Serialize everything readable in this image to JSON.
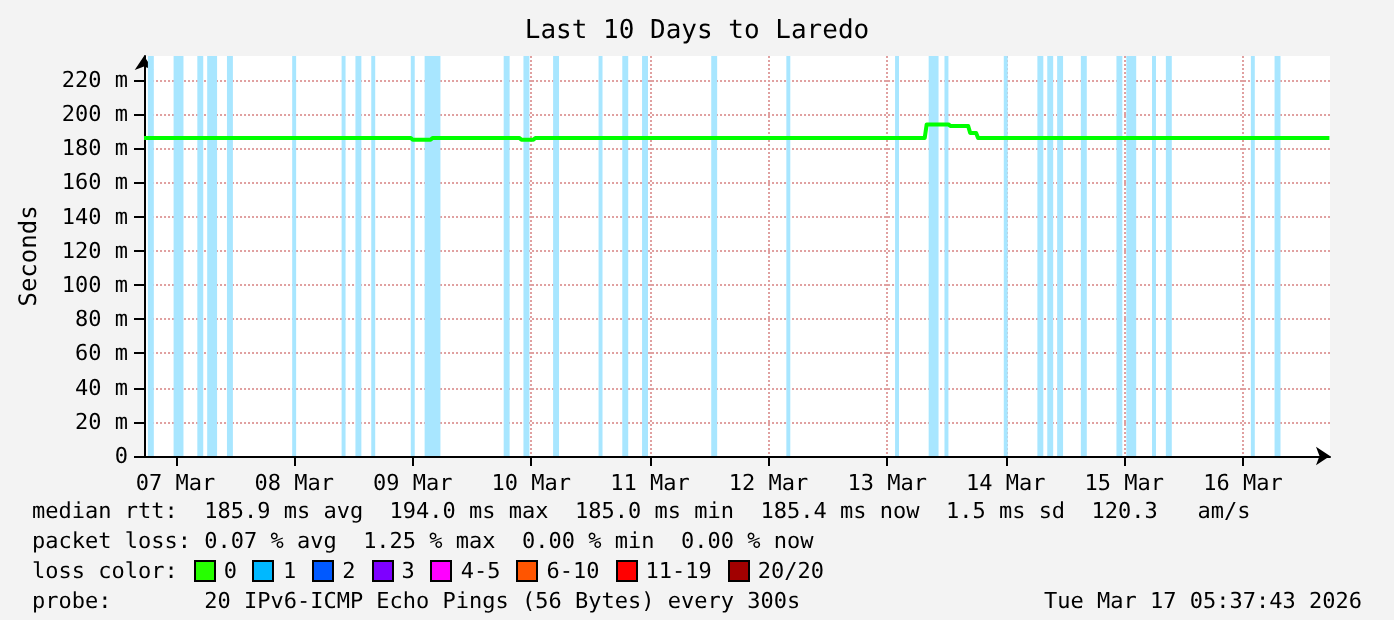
{
  "chart_data": {
    "type": "line",
    "title": "Last 10 Days to Laredo",
    "ylabel": "Seconds",
    "x": [
      "2026-03-07T05:37",
      "2026-03-09T11:36",
      "2026-03-09T12:00",
      "2026-03-09T15:36",
      "2026-03-09T16:00",
      "2026-03-10T09:36",
      "2026-03-10T10:00",
      "2026-03-10T12:24",
      "2026-03-10T12:48",
      "2026-03-13T19:36",
      "2026-03-13T20:00",
      "2026-03-14T00:24",
      "2026-03-14T00:48",
      "2026-03-14T04:24",
      "2026-03-14T04:48",
      "2026-03-14T06:00",
      "2026-03-14T06:24",
      "2026-03-17T05:30"
    ],
    "series": [
      {
        "color": "#00ff00",
        "values": [
          186,
          186,
          185,
          185,
          186,
          186,
          185,
          185,
          186,
          186,
          194,
          194,
          193,
          193,
          189,
          189,
          186,
          186
        ]
      }
    ],
    "xlim": [
      "2026-03-07T05:37",
      "2026-03-17T05:37"
    ],
    "xticks": [
      {
        "value": "2026-03-07T12:00",
        "label": "07 Mar"
      },
      {
        "value": "2026-03-08T12:00",
        "label": "08 Mar"
      },
      {
        "value": "2026-03-09T12:00",
        "label": "09 Mar"
      },
      {
        "value": "2026-03-10T12:00",
        "label": "10 Mar"
      },
      {
        "value": "2026-03-11T12:00",
        "label": "11 Mar"
      },
      {
        "value": "2026-03-12T12:00",
        "label": "12 Mar"
      },
      {
        "value": "2026-03-13T12:00",
        "label": "13 Mar"
      },
      {
        "value": "2026-03-14T12:00",
        "label": "14 Mar"
      },
      {
        "value": "2026-03-15T12:00",
        "label": "15 Mar"
      },
      {
        "value": "2026-03-16T12:00",
        "label": "16 Mar"
      }
    ],
    "ylim": [
      0,
      234
    ],
    "yticks": [
      {
        "value": 0,
        "label": "0"
      },
      {
        "value": 20,
        "label": "20 m"
      },
      {
        "value": 40,
        "label": "40 m"
      },
      {
        "value": 60,
        "label": "60 m"
      },
      {
        "value": 80,
        "label": "80 m"
      },
      {
        "value": 100,
        "label": "100 m"
      },
      {
        "value": 120,
        "label": "120 m"
      },
      {
        "value": 140,
        "label": "140 m"
      },
      {
        "value": 160,
        "label": "160 m"
      },
      {
        "value": 180,
        "label": "180 m"
      },
      {
        "value": 200,
        "label": "200 m"
      },
      {
        "value": 220,
        "label": "220 m"
      }
    ],
    "grid": true,
    "marker": "none",
    "bands": [
      {
        "axis": "x",
        "from": "2026-03-07T06:24",
        "to": "2026-03-07T07:36",
        "color": "#a8e6ff"
      },
      {
        "axis": "x",
        "from": "2026-03-07T11:36",
        "to": "2026-03-07T13:36",
        "color": "#a8e6ff"
      },
      {
        "axis": "x",
        "from": "2026-03-07T16:24",
        "to": "2026-03-07T17:36",
        "color": "#a8e6ff"
      },
      {
        "axis": "x",
        "from": "2026-03-07T18:24",
        "to": "2026-03-07T20:24",
        "color": "#a8e6ff"
      },
      {
        "axis": "x",
        "from": "2026-03-07T22:24",
        "to": "2026-03-07T23:36",
        "color": "#a8e6ff"
      },
      {
        "axis": "x",
        "from": "2026-03-08T11:36",
        "to": "2026-03-08T12:24",
        "color": "#a8e6ff"
      },
      {
        "axis": "x",
        "from": "2026-03-08T21:36",
        "to": "2026-03-08T22:24",
        "color": "#a8e6ff"
      },
      {
        "axis": "x",
        "from": "2026-03-09T00:24",
        "to": "2026-03-09T01:36",
        "color": "#a8e6ff"
      },
      {
        "axis": "x",
        "from": "2026-03-09T03:36",
        "to": "2026-03-09T04:24",
        "color": "#a8e6ff"
      },
      {
        "axis": "x",
        "from": "2026-03-09T11:36",
        "to": "2026-03-09T12:24",
        "color": "#a8e6ff"
      },
      {
        "axis": "x",
        "from": "2026-03-09T14:24",
        "to": "2026-03-09T17:36",
        "color": "#a8e6ff"
      },
      {
        "axis": "x",
        "from": "2026-03-10T06:24",
        "to": "2026-03-10T07:36",
        "color": "#a8e6ff"
      },
      {
        "axis": "x",
        "from": "2026-03-10T10:24",
        "to": "2026-03-10T11:36",
        "color": "#a8e6ff"
      },
      {
        "axis": "x",
        "from": "2026-03-10T16:24",
        "to": "2026-03-10T17:36",
        "color": "#a8e6ff"
      },
      {
        "axis": "x",
        "from": "2026-03-11T01:36",
        "to": "2026-03-11T02:24",
        "color": "#a8e6ff"
      },
      {
        "axis": "x",
        "from": "2026-03-11T06:24",
        "to": "2026-03-11T07:36",
        "color": "#a8e6ff"
      },
      {
        "axis": "x",
        "from": "2026-03-11T10:24",
        "to": "2026-03-11T11:36",
        "color": "#a8e6ff"
      },
      {
        "axis": "x",
        "from": "2026-03-12T00:24",
        "to": "2026-03-12T01:36",
        "color": "#a8e6ff"
      },
      {
        "axis": "x",
        "from": "2026-03-12T15:36",
        "to": "2026-03-12T16:24",
        "color": "#a8e6ff"
      },
      {
        "axis": "x",
        "from": "2026-03-13T13:36",
        "to": "2026-03-13T14:24",
        "color": "#a8e6ff"
      },
      {
        "axis": "x",
        "from": "2026-03-13T20:24",
        "to": "2026-03-13T22:24",
        "color": "#a8e6ff"
      },
      {
        "axis": "x",
        "from": "2026-03-13T23:36",
        "to": "2026-03-14T00:24",
        "color": "#a8e6ff"
      },
      {
        "axis": "x",
        "from": "2026-03-14T11:36",
        "to": "2026-03-14T12:24",
        "color": "#a8e6ff"
      },
      {
        "axis": "x",
        "from": "2026-03-14T18:24",
        "to": "2026-03-14T19:36",
        "color": "#a8e6ff"
      },
      {
        "axis": "x",
        "from": "2026-03-14T20:24",
        "to": "2026-03-14T21:36",
        "color": "#a8e6ff"
      },
      {
        "axis": "x",
        "from": "2026-03-14T22:24",
        "to": "2026-03-14T23:36",
        "color": "#a8e6ff"
      },
      {
        "axis": "x",
        "from": "2026-03-15T03:12",
        "to": "2026-03-15T04:24",
        "color": "#a8e6ff"
      },
      {
        "axis": "x",
        "from": "2026-03-15T10:24",
        "to": "2026-03-15T11:36",
        "color": "#a8e6ff"
      },
      {
        "axis": "x",
        "from": "2026-03-15T12:24",
        "to": "2026-03-15T14:24",
        "color": "#a8e6ff"
      },
      {
        "axis": "x",
        "from": "2026-03-15T17:36",
        "to": "2026-03-15T18:24",
        "color": "#a8e6ff"
      },
      {
        "axis": "x",
        "from": "2026-03-15T20:24",
        "to": "2026-03-15T21:36",
        "color": "#a8e6ff"
      },
      {
        "axis": "x",
        "from": "2026-03-16T13:36",
        "to": "2026-03-16T14:24",
        "color": "#a8e6ff"
      },
      {
        "axis": "x",
        "from": "2026-03-16T18:24",
        "to": "2026-03-16T19:36",
        "color": "#a8e6ff"
      }
    ],
    "annotations": [
      "median rtt:  185.9 ms avg  194.0 ms max  185.0 ms min  185.4 ms now  1.5 ms sd  120.3   am/s",
      "packet loss: 0.07 % avg  1.25 % max  0.00 % min  0.00 % now",
      "loss color:",
      "0",
      "1",
      "2",
      "3",
      "4-5",
      "6-10",
      "11-19",
      "20/20",
      "probe:       20 IPv6-ICMP Echo Pings (56 Bytes) every 300s",
      "Tue Mar 17 05:37:43 2026"
    ]
  }
}
